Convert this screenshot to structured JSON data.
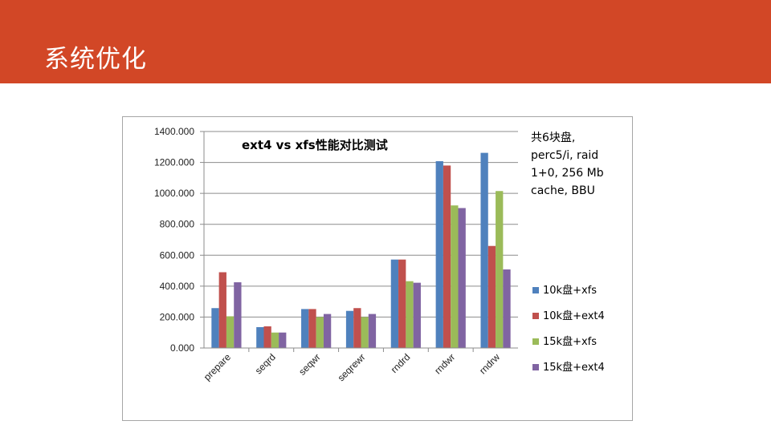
{
  "slide": {
    "title": "系统优化",
    "header_color": "#d24726"
  },
  "chart_data": {
    "type": "bar",
    "title": "ext4 vs xfs性能对比测试",
    "categories": [
      "prepare",
      "seqrd",
      "seqwr",
      "seqrewr",
      "rndrd",
      "rndwr",
      "rndrw"
    ],
    "series": [
      {
        "name": "10k盘+xfs",
        "color": "#4f81bd",
        "values": [
          258,
          135,
          252,
          240,
          572,
          1208,
          1262
        ]
      },
      {
        "name": "10k盘+ext4",
        "color": "#c0504d",
        "values": [
          490,
          140,
          252,
          258,
          572,
          1180,
          660
        ]
      },
      {
        "name": "15k盘+xfs",
        "color": "#9bbb59",
        "values": [
          205,
          100,
          200,
          200,
          432,
          922,
          1015
        ]
      },
      {
        "name": "15k盘+ext4",
        "color": "#8064a2",
        "values": [
          425,
          100,
          220,
          220,
          422,
          905,
          508
        ]
      }
    ],
    "ylim": [
      0,
      1400
    ],
    "yticks": [
      "0.000",
      "200.000",
      "400.000",
      "600.000",
      "800.000",
      "1000.000",
      "1200.000",
      "1400.000"
    ],
    "xlabel": "",
    "ylabel": "",
    "grid": true,
    "legend": "right",
    "annotation_lines": [
      "共6块盘,",
      "perc5/i, raid",
      "1+0, 256 Mb",
      "cache, BBU"
    ]
  }
}
